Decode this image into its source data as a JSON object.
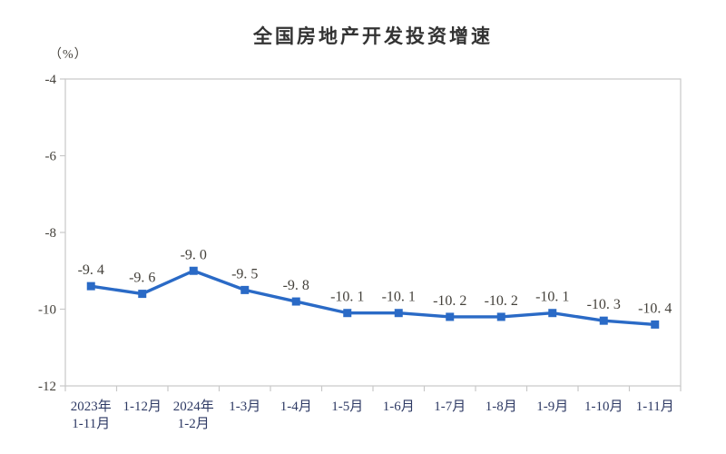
{
  "title": "全国房地产开发投资增速",
  "unit_label": "（%）",
  "colors": {
    "line": "#2a6ac6",
    "axis": "#c8c8c8",
    "title_text": "#333333",
    "tick_text": "#44413b",
    "xlabel_text": "#2e3a64",
    "datalabel_text": "#44413b",
    "background": "#ffffff"
  },
  "chart_data": {
    "type": "line",
    "title": "全国房地产开发投资增速",
    "ylabel": "（%）",
    "xlabel": "",
    "categories": [
      "2023年\n1-11月",
      "1-12月",
      "2024年\n1-2月",
      "1-3月",
      "1-4月",
      "1-5月",
      "1-6月",
      "1-7月",
      "1-8月",
      "1-9月",
      "1-10月",
      "1-11月"
    ],
    "values": [
      -9.4,
      -9.6,
      -9.0,
      -9.5,
      -9.8,
      -10.1,
      -10.1,
      -10.2,
      -10.2,
      -10.1,
      -10.3,
      -10.4
    ],
    "data_labels": [
      "-9. 4",
      "-9. 6",
      "-9. 0",
      "-9. 5",
      "-9. 8",
      "-10. 1",
      "-10. 1",
      "-10. 2",
      "-10. 2",
      "-10. 1",
      "-10. 3",
      "-10. 4"
    ],
    "ylim": [
      -12,
      -4
    ],
    "yticks": [
      -4,
      -6,
      -8,
      -10,
      -12
    ],
    "ytick_labels": [
      "-4",
      "-6",
      "-8",
      "-10",
      "-12"
    ],
    "grid": false,
    "legend": "none",
    "marker": "square"
  }
}
